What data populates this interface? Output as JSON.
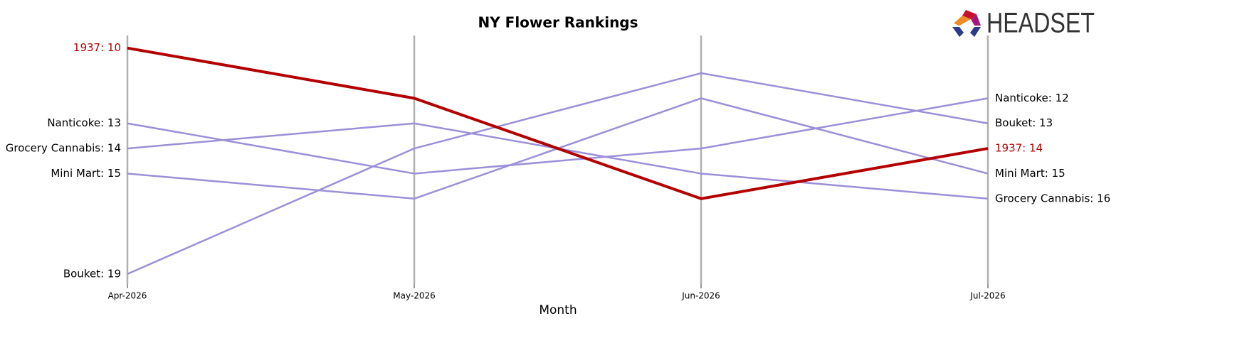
{
  "chart_data": {
    "type": "bump",
    "title": "NY Flower Rankings",
    "x_label": "Month",
    "logo": "HEADSET",
    "categories": [
      "Apr-2026",
      "May-2026",
      "Jun-2026",
      "Jul-2026"
    ],
    "ylim": [
      19.4,
      9.5
    ],
    "grid": true,
    "series": [
      {
        "name": "Nanticoke",
        "color": "#9b8fd8",
        "values": [
          13,
          15,
          14,
          12
        ],
        "value_labels": [
          "Nanticoke: 13",
          null,
          null,
          "Nanticoke: 12"
        ]
      },
      {
        "name": "Grocery Cannabis",
        "color": "#9b8fd8",
        "values": [
          14,
          13,
          15,
          16
        ],
        "value_labels": [
          "Grocery Cannabis: 14",
          null,
          null,
          "Grocery Cannabis: 16"
        ]
      },
      {
        "name": "Mini Mart",
        "color": "#9b8fd8",
        "values": [
          15,
          16,
          12,
          15
        ],
        "value_labels": [
          "Mini Mart: 15",
          null,
          null,
          "Mini Mart: 15"
        ]
      },
      {
        "name": "Bouket",
        "color": "#9b8fd8",
        "values": [
          19,
          14,
          11,
          13
        ],
        "value_labels": [
          "Bouket: 19",
          null,
          null,
          "Bouket: 13"
        ]
      },
      {
        "name": "1937",
        "color": "#b30000",
        "values": [
          10,
          12,
          16,
          14
        ],
        "value_labels": [
          "1937: 10",
          null,
          null,
          "1937: 14"
        ],
        "highlight": true
      }
    ]
  }
}
